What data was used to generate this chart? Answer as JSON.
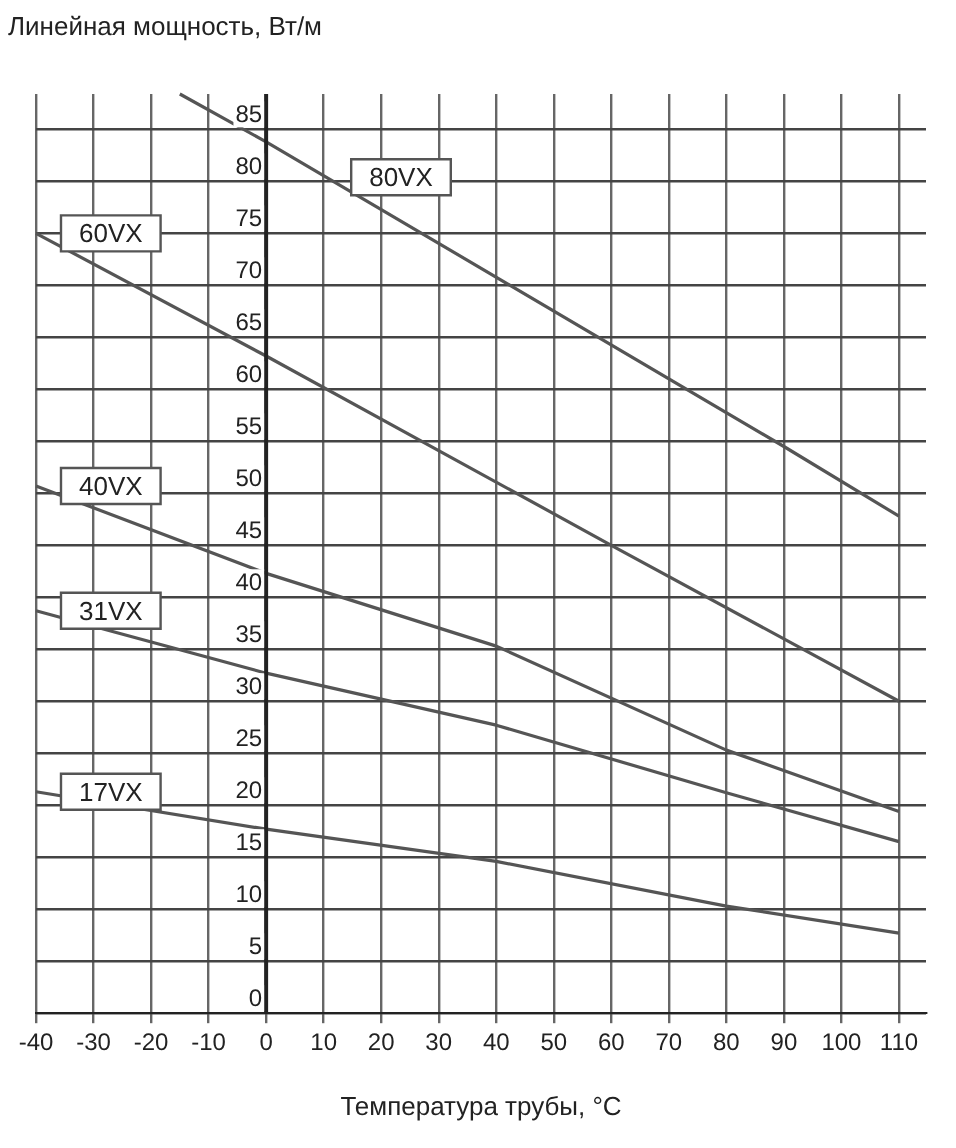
{
  "chart_data": {
    "type": "line",
    "xlabel": "Температура трубы, °C",
    "ylabel": "Линейная мощность, Вт/м",
    "xlim": [
      -40,
      114.7
    ],
    "xticks": [
      -40,
      -30,
      -20,
      -10,
      0,
      10,
      20,
      30,
      40,
      50,
      60,
      70,
      80,
      90,
      100,
      110
    ],
    "ylim": [
      0,
      88.4
    ],
    "yticks": [
      0,
      5,
      10,
      15,
      20,
      25,
      30,
      35,
      40,
      45,
      50,
      55,
      60,
      65,
      70,
      75,
      80,
      85
    ],
    "grid": true,
    "legend": false,
    "marker": "none",
    "line_style": "solid",
    "series": [
      {
        "name": "80VX",
        "color": "#555555",
        "x": [
          -15,
          0,
          90,
          110
        ],
        "values": [
          88.4,
          83.8,
          54.5,
          47.8
        ]
      },
      {
        "name": "60VX",
        "color": "#555555",
        "x": [
          -40,
          0,
          60,
          110
        ],
        "values": [
          75,
          63.2,
          45,
          30
        ]
      },
      {
        "name": "40VX",
        "color": "#555555",
        "x": [
          -40,
          0,
          40,
          80,
          110
        ],
        "values": [
          50.7,
          42.3,
          35.3,
          25.3,
          19.4
        ]
      },
      {
        "name": "31VX",
        "color": "#555555",
        "x": [
          -40,
          0,
          40,
          80,
          110
        ],
        "values": [
          38.7,
          32.7,
          27.7,
          21.2,
          16.5
        ]
      },
      {
        "name": "17VX",
        "color": "#555555",
        "x": [
          -40,
          0,
          40,
          80,
          110
        ],
        "values": [
          21.3,
          17.7,
          14.6,
          10.3,
          7.7
        ]
      }
    ]
  }
}
